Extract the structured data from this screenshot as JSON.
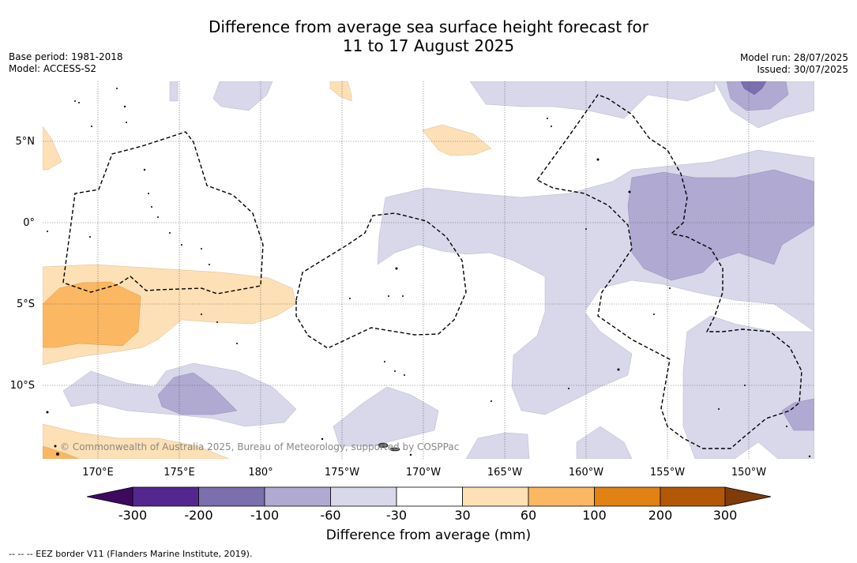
{
  "header": {
    "title_line1": "Difference from average sea surface height forecast for",
    "title_line2": "11 to 17 August 2025",
    "base_period": "Base period: 1981-2018",
    "model": "Model: ACCESS-S2",
    "model_run": "Model run: 28/07/2025",
    "issued": "Issued: 30/07/2025"
  },
  "map": {
    "lat_labels": [
      "5°N",
      "0°",
      "5°S",
      "10°S"
    ],
    "lon_labels": [
      "170°E",
      "175°E",
      "180°",
      "175°W",
      "170°W",
      "165°W",
      "160°W",
      "155°W",
      "150°W"
    ],
    "copyright": "© Commonwealth of Australia 2025, Bureau of Meteorology, supported by COSPPac",
    "colors": {
      "pos_30_60": "#fde0b5",
      "pos_60_100": "#fbb762",
      "neg_30_60": "#d8d8ea",
      "neg_60_100": "#b0a9d2",
      "neg_100_200": "#7c6fad"
    }
  },
  "colorbar": {
    "ticks": [
      "-300",
      "-200",
      "-100",
      "-60",
      "-30",
      "30",
      "60",
      "100",
      "200",
      "300"
    ],
    "colors": [
      "#3e0a5f",
      "#54278f",
      "#7c6fad",
      "#b0a9d2",
      "#d8d8ea",
      "#ffffff",
      "#fde0b5",
      "#fbb762",
      "#e08214",
      "#b35806",
      "#7f3b08"
    ],
    "label": "Difference from average (mm)"
  },
  "footnote": "--  --  -- EEZ border V11 (Flanders Marine Institute, 2019)."
}
